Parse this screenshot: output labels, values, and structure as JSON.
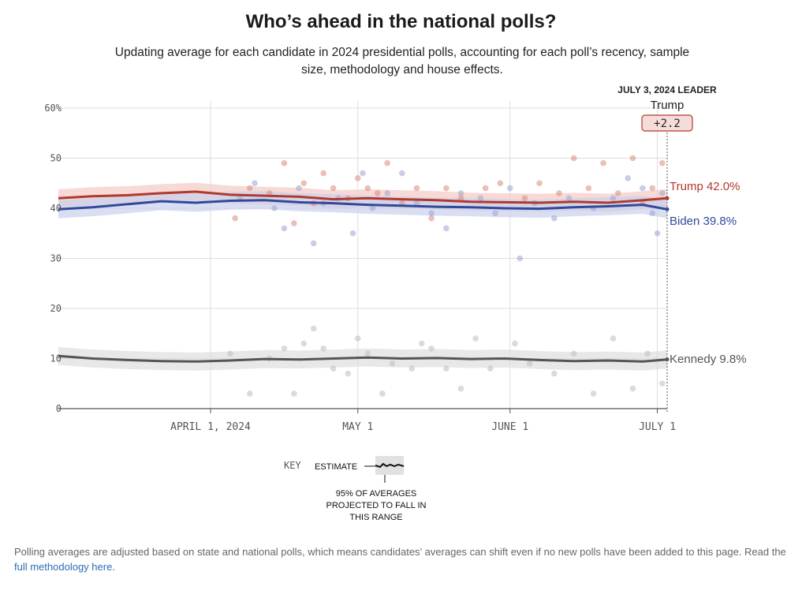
{
  "header": {
    "title": "Who’s ahead in the national polls?",
    "subtitle": "Updating average for each candidate in 2024 presidential polls, accounting for each poll’s recency, sample size, methodology and house effects."
  },
  "leader": {
    "date_label": "JULY 3, 2024 LEADER",
    "name": "Trump",
    "margin": "+2.2"
  },
  "colors": {
    "trump": "#b03a2e",
    "biden": "#2f4a9a",
    "kennedy": "#555555",
    "trump_dot": "#d98a80",
    "biden_dot": "#9aa6d6",
    "kennedy_dot": "#bdbdbd"
  },
  "chart_data": {
    "type": "line",
    "x_start": "2024-03-01",
    "x_end": "2024-07-03",
    "y_range": [
      0,
      60
    ],
    "y_ticks": [
      {
        "value": 0,
        "label": "0"
      },
      {
        "value": 10,
        "label": "10"
      },
      {
        "value": 20,
        "label": "20"
      },
      {
        "value": 30,
        "label": "30"
      },
      {
        "value": 40,
        "label": "40"
      },
      {
        "value": 50,
        "label": "50"
      },
      {
        "value": 60,
        "label": "60%"
      }
    ],
    "x_ticks": [
      {
        "date": "2024-04-01",
        "label": "APRIL 1, 2024"
      },
      {
        "date": "2024-05-01",
        "label": "MAY 1"
      },
      {
        "date": "2024-06-01",
        "label": "JUNE 1"
      },
      {
        "date": "2024-07-01",
        "label": "JULY 1"
      }
    ],
    "grid": true,
    "series": [
      {
        "name": "Trump",
        "end_label": "Trump 42.0%",
        "points": [
          {
            "date": "2024-03-01",
            "value": 42.0
          },
          {
            "date": "2024-03-08",
            "value": 42.4
          },
          {
            "date": "2024-03-15",
            "value": 42.6
          },
          {
            "date": "2024-03-22",
            "value": 43.0
          },
          {
            "date": "2024-03-29",
            "value": 43.3
          },
          {
            "date": "2024-04-05",
            "value": 42.7
          },
          {
            "date": "2024-04-12",
            "value": 42.5
          },
          {
            "date": "2024-04-19",
            "value": 42.3
          },
          {
            "date": "2024-04-26",
            "value": 41.8
          },
          {
            "date": "2024-05-03",
            "value": 42.0
          },
          {
            "date": "2024-05-10",
            "value": 41.8
          },
          {
            "date": "2024-05-17",
            "value": 41.6
          },
          {
            "date": "2024-05-24",
            "value": 41.3
          },
          {
            "date": "2024-05-31",
            "value": 41.2
          },
          {
            "date": "2024-06-07",
            "value": 41.1
          },
          {
            "date": "2024-06-14",
            "value": 41.3
          },
          {
            "date": "2024-06-21",
            "value": 41.1
          },
          {
            "date": "2024-06-28",
            "value": 41.6
          },
          {
            "date": "2024-07-03",
            "value": 42.0
          }
        ]
      },
      {
        "name": "Biden",
        "end_label": "Biden 39.8%",
        "points": [
          {
            "date": "2024-03-01",
            "value": 39.8
          },
          {
            "date": "2024-03-08",
            "value": 40.2
          },
          {
            "date": "2024-03-15",
            "value": 40.8
          },
          {
            "date": "2024-03-22",
            "value": 41.4
          },
          {
            "date": "2024-03-29",
            "value": 41.1
          },
          {
            "date": "2024-04-05",
            "value": 41.5
          },
          {
            "date": "2024-04-12",
            "value": 41.6
          },
          {
            "date": "2024-04-19",
            "value": 41.2
          },
          {
            "date": "2024-04-26",
            "value": 41.0
          },
          {
            "date": "2024-05-03",
            "value": 40.7
          },
          {
            "date": "2024-05-10",
            "value": 40.5
          },
          {
            "date": "2024-05-17",
            "value": 40.3
          },
          {
            "date": "2024-05-24",
            "value": 40.2
          },
          {
            "date": "2024-05-31",
            "value": 40.0
          },
          {
            "date": "2024-06-07",
            "value": 39.9
          },
          {
            "date": "2024-06-14",
            "value": 40.2
          },
          {
            "date": "2024-06-21",
            "value": 40.4
          },
          {
            "date": "2024-06-28",
            "value": 40.7
          },
          {
            "date": "2024-07-03",
            "value": 39.8
          }
        ]
      },
      {
        "name": "Kennedy",
        "end_label": "Kennedy 9.8%",
        "points": [
          {
            "date": "2024-03-01",
            "value": 10.5
          },
          {
            "date": "2024-03-08",
            "value": 10.0
          },
          {
            "date": "2024-03-15",
            "value": 9.7
          },
          {
            "date": "2024-03-22",
            "value": 9.5
          },
          {
            "date": "2024-03-29",
            "value": 9.4
          },
          {
            "date": "2024-04-05",
            "value": 9.6
          },
          {
            "date": "2024-04-12",
            "value": 9.9
          },
          {
            "date": "2024-04-19",
            "value": 9.8
          },
          {
            "date": "2024-04-26",
            "value": 10.0
          },
          {
            "date": "2024-05-03",
            "value": 10.2
          },
          {
            "date": "2024-05-10",
            "value": 10.0
          },
          {
            "date": "2024-05-17",
            "value": 10.1
          },
          {
            "date": "2024-05-24",
            "value": 9.9
          },
          {
            "date": "2024-05-31",
            "value": 10.0
          },
          {
            "date": "2024-06-07",
            "value": 9.7
          },
          {
            "date": "2024-06-14",
            "value": 9.5
          },
          {
            "date": "2024-06-21",
            "value": 9.6
          },
          {
            "date": "2024-06-28",
            "value": 9.4
          },
          {
            "date": "2024-07-03",
            "value": 9.8
          }
        ]
      }
    ],
    "polls": {
      "trump": [
        {
          "date": "2024-04-06",
          "value": 38
        },
        {
          "date": "2024-04-09",
          "value": 44
        },
        {
          "date": "2024-04-13",
          "value": 43
        },
        {
          "date": "2024-04-16",
          "value": 49
        },
        {
          "date": "2024-04-18",
          "value": 37
        },
        {
          "date": "2024-04-20",
          "value": 45
        },
        {
          "date": "2024-04-22",
          "value": 41
        },
        {
          "date": "2024-04-24",
          "value": 47
        },
        {
          "date": "2024-04-26",
          "value": 44
        },
        {
          "date": "2024-04-29",
          "value": 42
        },
        {
          "date": "2024-05-01",
          "value": 46
        },
        {
          "date": "2024-05-03",
          "value": 44
        },
        {
          "date": "2024-05-05",
          "value": 43
        },
        {
          "date": "2024-05-07",
          "value": 49
        },
        {
          "date": "2024-05-10",
          "value": 41
        },
        {
          "date": "2024-05-13",
          "value": 44
        },
        {
          "date": "2024-05-16",
          "value": 38
        },
        {
          "date": "2024-05-19",
          "value": 44
        },
        {
          "date": "2024-05-22",
          "value": 42
        },
        {
          "date": "2024-05-27",
          "value": 44
        },
        {
          "date": "2024-05-30",
          "value": 45
        },
        {
          "date": "2024-06-04",
          "value": 42
        },
        {
          "date": "2024-06-07",
          "value": 45
        },
        {
          "date": "2024-06-11",
          "value": 43
        },
        {
          "date": "2024-06-14",
          "value": 50
        },
        {
          "date": "2024-06-17",
          "value": 44
        },
        {
          "date": "2024-06-20",
          "value": 49
        },
        {
          "date": "2024-06-23",
          "value": 43
        },
        {
          "date": "2024-06-26",
          "value": 50
        },
        {
          "date": "2024-06-28",
          "value": 41
        },
        {
          "date": "2024-06-30",
          "value": 44
        },
        {
          "date": "2024-07-02",
          "value": 49
        }
      ],
      "biden": [
        {
          "date": "2024-04-07",
          "value": 42
        },
        {
          "date": "2024-04-10",
          "value": 45
        },
        {
          "date": "2024-04-14",
          "value": 40
        },
        {
          "date": "2024-04-16",
          "value": 36
        },
        {
          "date": "2024-04-19",
          "value": 44
        },
        {
          "date": "2024-04-22",
          "value": 33
        },
        {
          "date": "2024-04-24",
          "value": 41
        },
        {
          "date": "2024-04-27",
          "value": 42
        },
        {
          "date": "2024-04-30",
          "value": 35
        },
        {
          "date": "2024-05-02",
          "value": 47
        },
        {
          "date": "2024-05-04",
          "value": 40
        },
        {
          "date": "2024-05-07",
          "value": 43
        },
        {
          "date": "2024-05-10",
          "value": 47
        },
        {
          "date": "2024-05-13",
          "value": 41
        },
        {
          "date": "2024-05-16",
          "value": 39
        },
        {
          "date": "2024-05-19",
          "value": 36
        },
        {
          "date": "2024-05-22",
          "value": 43
        },
        {
          "date": "2024-05-26",
          "value": 42
        },
        {
          "date": "2024-05-29",
          "value": 39
        },
        {
          "date": "2024-06-01",
          "value": 44
        },
        {
          "date": "2024-06-03",
          "value": 30
        },
        {
          "date": "2024-06-06",
          "value": 41
        },
        {
          "date": "2024-06-10",
          "value": 38
        },
        {
          "date": "2024-06-13",
          "value": 42
        },
        {
          "date": "2024-06-18",
          "value": 40
        },
        {
          "date": "2024-06-22",
          "value": 42
        },
        {
          "date": "2024-06-25",
          "value": 46
        },
        {
          "date": "2024-06-28",
          "value": 44
        },
        {
          "date": "2024-06-30",
          "value": 39
        },
        {
          "date": "2024-07-01",
          "value": 35
        },
        {
          "date": "2024-07-02",
          "value": 43
        }
      ],
      "kennedy": [
        {
          "date": "2024-04-05",
          "value": 11
        },
        {
          "date": "2024-04-09",
          "value": 3
        },
        {
          "date": "2024-04-13",
          "value": 10
        },
        {
          "date": "2024-04-16",
          "value": 12
        },
        {
          "date": "2024-04-18",
          "value": 3
        },
        {
          "date": "2024-04-20",
          "value": 13
        },
        {
          "date": "2024-04-22",
          "value": 16
        },
        {
          "date": "2024-04-24",
          "value": 12
        },
        {
          "date": "2024-04-26",
          "value": 8
        },
        {
          "date": "2024-04-29",
          "value": 7
        },
        {
          "date": "2024-05-01",
          "value": 14
        },
        {
          "date": "2024-05-03",
          "value": 11
        },
        {
          "date": "2024-05-06",
          "value": 3
        },
        {
          "date": "2024-05-08",
          "value": 9
        },
        {
          "date": "2024-05-12",
          "value": 8
        },
        {
          "date": "2024-05-14",
          "value": 13
        },
        {
          "date": "2024-05-16",
          "value": 12
        },
        {
          "date": "2024-05-19",
          "value": 8
        },
        {
          "date": "2024-05-22",
          "value": 4
        },
        {
          "date": "2024-05-25",
          "value": 14
        },
        {
          "date": "2024-05-28",
          "value": 8
        },
        {
          "date": "2024-06-02",
          "value": 13
        },
        {
          "date": "2024-06-05",
          "value": 9
        },
        {
          "date": "2024-06-10",
          "value": 7
        },
        {
          "date": "2024-06-14",
          "value": 11
        },
        {
          "date": "2024-06-18",
          "value": 3
        },
        {
          "date": "2024-06-22",
          "value": 14
        },
        {
          "date": "2024-06-26",
          "value": 4
        },
        {
          "date": "2024-06-29",
          "value": 11
        },
        {
          "date": "2024-07-02",
          "value": 5
        }
      ]
    }
  },
  "key": {
    "label": "KEY",
    "estimate_label": "ESTIMATE",
    "range_label_1": "95% OF AVERAGES",
    "range_label_2": "PROJECTED TO FALL IN",
    "range_label_3": "THIS RANGE"
  },
  "footnote": {
    "text": "Polling averages are adjusted based on state and national polls, which means candidates’ averages can shift even if no new polls have been added to this page. Read the ",
    "link_text": "full methodology here",
    "end": "."
  }
}
